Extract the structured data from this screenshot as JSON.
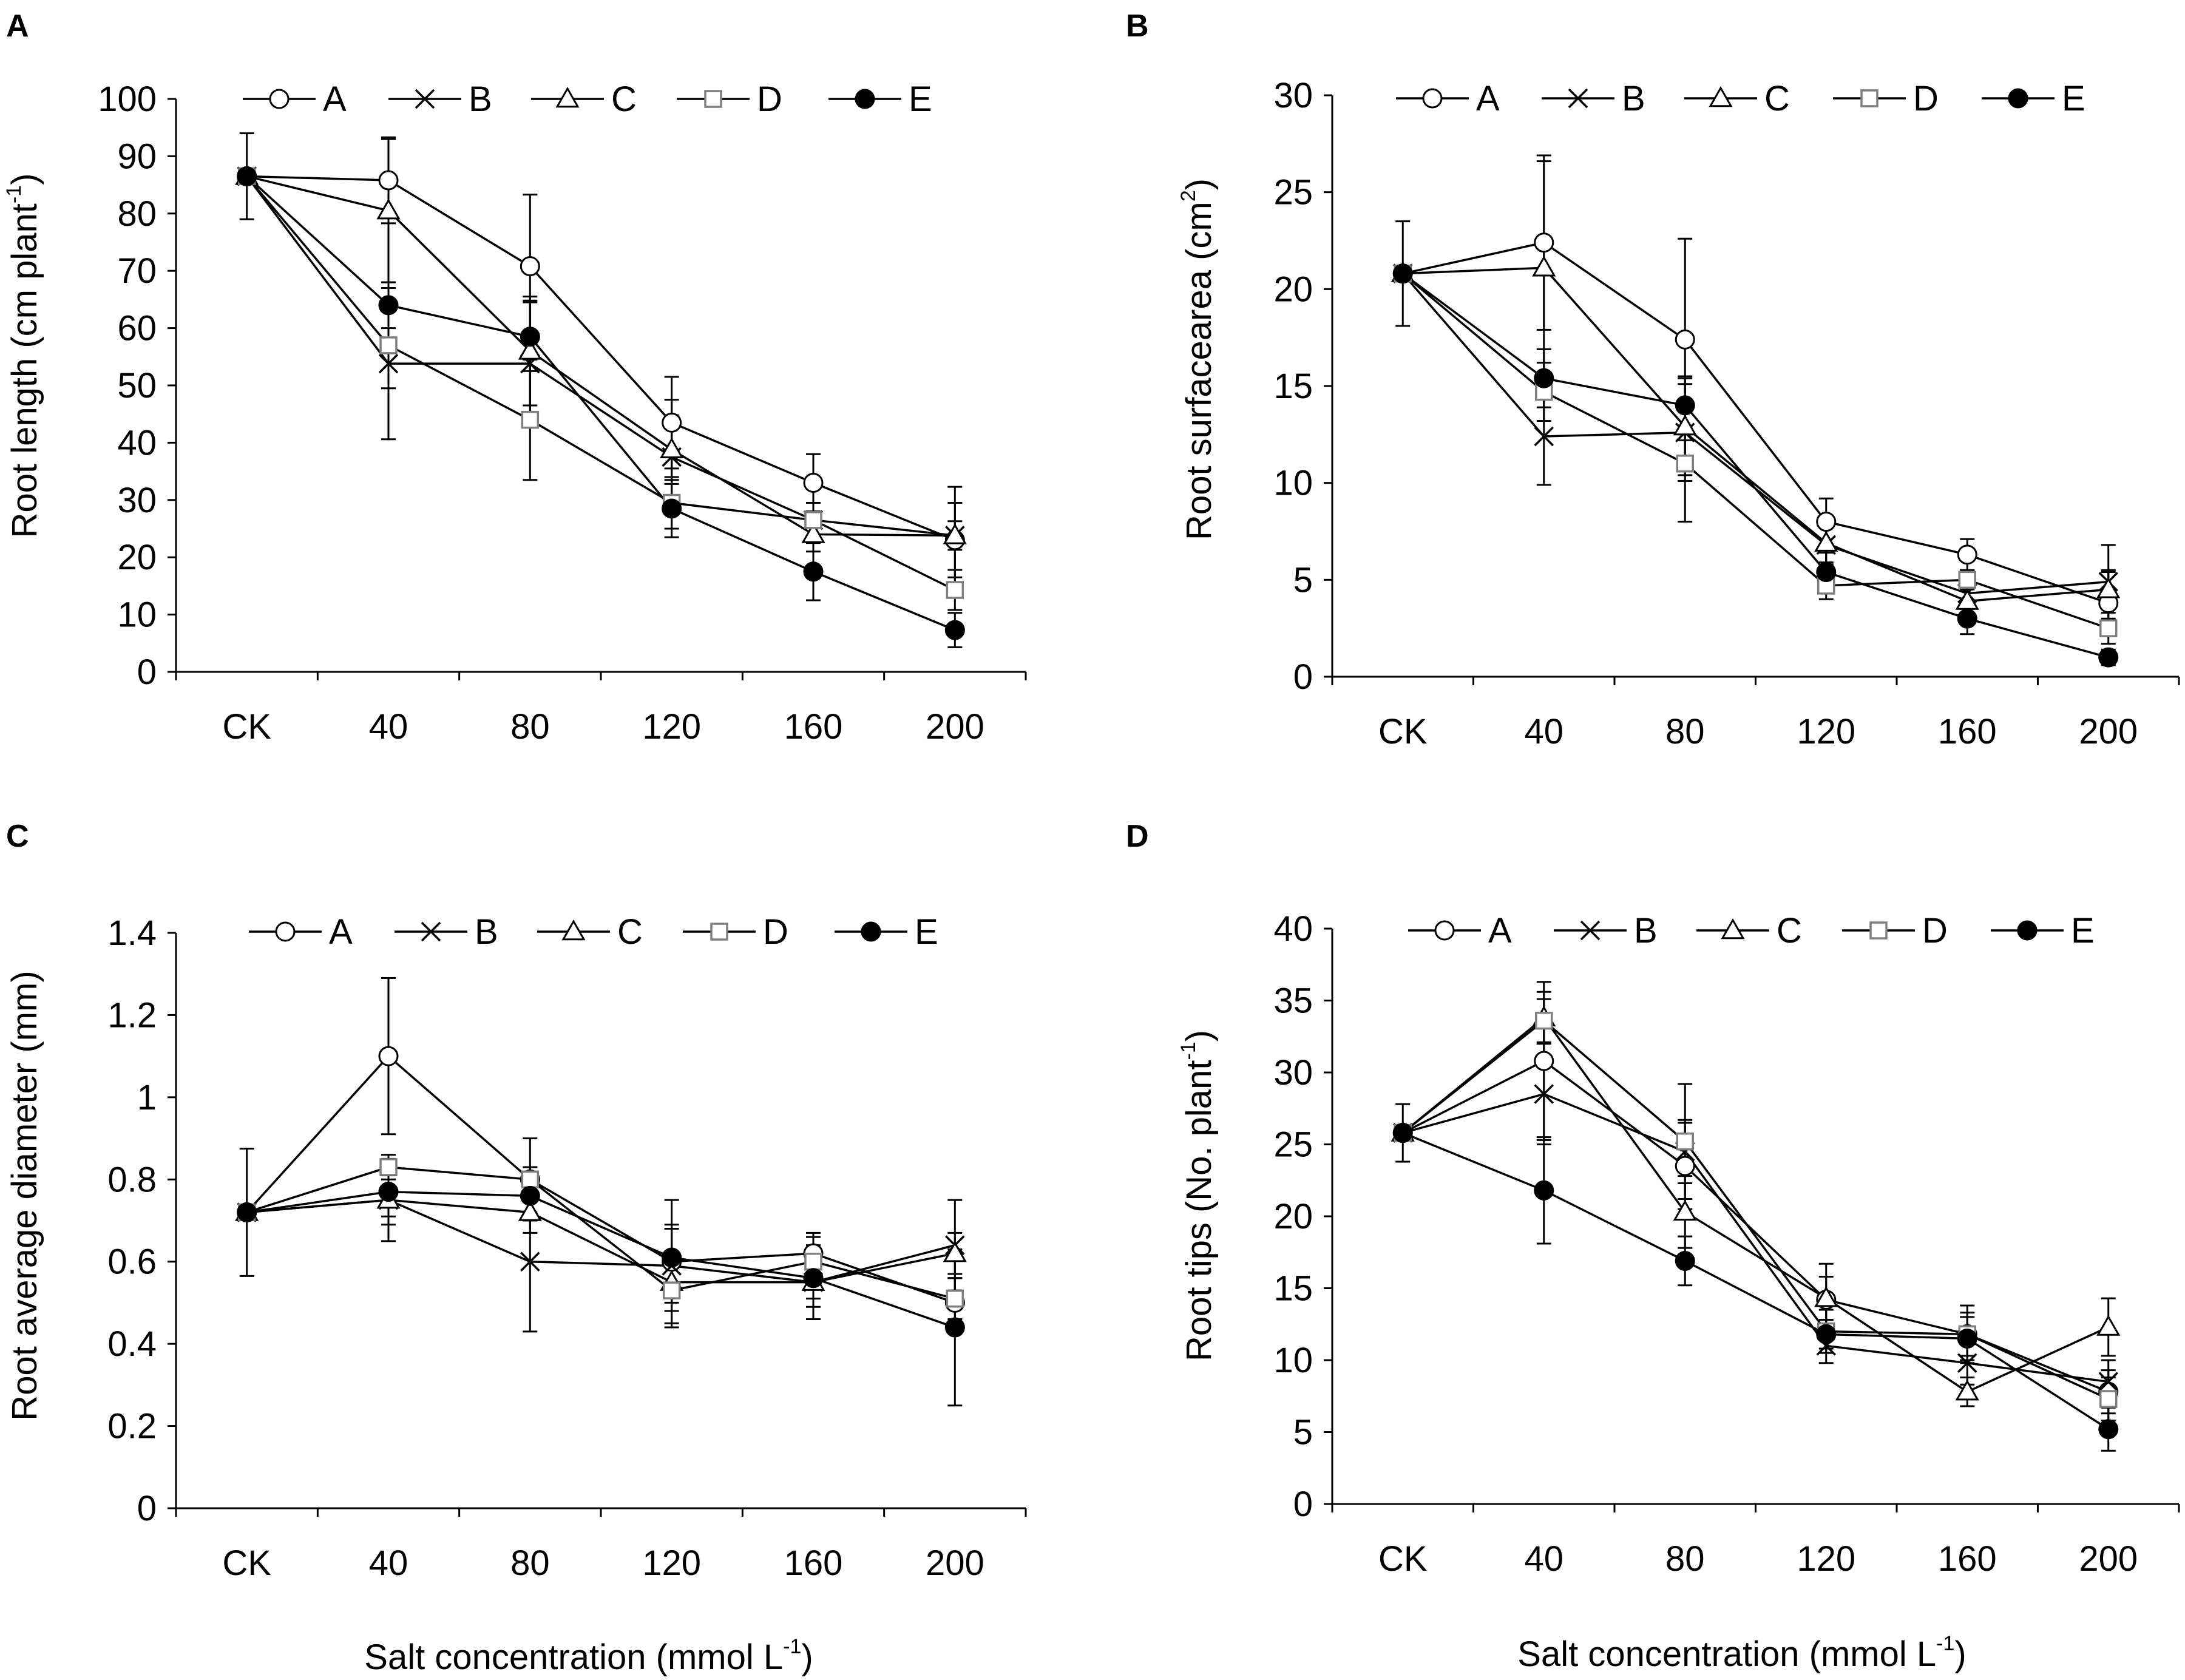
{
  "chart_data": [
    {
      "type": "line",
      "panel": "A",
      "title": "",
      "xlabel": "",
      "ylabel": "Root length (cm plant",
      "ylabel_sup": "-1",
      "ylabel_end": ")",
      "categories": [
        "CK",
        "40",
        "80",
        "120",
        "160",
        "200"
      ],
      "ylim": [
        0,
        100
      ],
      "yticks": [
        0,
        10,
        20,
        30,
        40,
        50,
        60,
        70,
        80,
        90,
        100
      ],
      "legend_position": "top",
      "series": [
        {
          "name": "A",
          "marker": "open-circle",
          "values": [
            86.5,
            85.8,
            70.8,
            43.5,
            33.0,
            23.0
          ],
          "err": [
            7.5,
            7.5,
            12.5,
            8.0,
            5.0,
            6.5
          ]
        },
        {
          "name": "B",
          "marker": "cross",
          "values": [
            86.5,
            53.8,
            53.8,
            37.5,
            26.5,
            23.8
          ],
          "err": [
            0,
            13.2,
            11.0,
            10.0,
            3.0,
            2.5
          ]
        },
        {
          "name": "C",
          "marker": "open-triangle",
          "values": [
            86.5,
            80.5,
            56.0,
            38.8,
            24.0,
            23.8
          ],
          "err": [
            0,
            12.5,
            9.5,
            6.0,
            3.0,
            8.5
          ]
        },
        {
          "name": "D",
          "marker": "open-square-gray",
          "values": [
            86.5,
            57.0,
            44.0,
            29.5,
            26.5,
            14.3
          ],
          "err": [
            0,
            7.5,
            10.5,
            4.5,
            3.0,
            3.5
          ]
        },
        {
          "name": "E",
          "marker": "filled-circle",
          "values": [
            86.5,
            64.0,
            58.5,
            28.5,
            17.5,
            7.3
          ],
          "err": [
            0,
            4.0,
            6.0,
            5.0,
            5.0,
            3.0
          ]
        }
      ]
    },
    {
      "type": "line",
      "panel": "B",
      "title": "",
      "xlabel": "",
      "ylabel": "Root surfacearea (cm",
      "ylabel_sup": "2",
      "ylabel_end": ")",
      "categories": [
        "CK",
        "40",
        "80",
        "120",
        "160",
        "200"
      ],
      "ylim": [
        0,
        30
      ],
      "yticks": [
        0,
        5,
        10,
        15,
        20,
        25,
        30
      ],
      "legend_position": "top",
      "series": [
        {
          "name": "A",
          "marker": "open-circle",
          "values": [
            20.8,
            22.4,
            17.4,
            8.0,
            6.3,
            3.8
          ],
          "err": [
            2.7,
            4.5,
            5.2,
            1.2,
            0.8,
            1.6
          ]
        },
        {
          "name": "B",
          "marker": "cross",
          "values": [
            20.8,
            12.4,
            12.6,
            6.8,
            4.3,
            4.9
          ],
          "err": [
            0,
            2.5,
            2.5,
            1.0,
            0.8,
            1.9
          ]
        },
        {
          "name": "C",
          "marker": "open-triangle",
          "values": [
            20.8,
            21.1,
            12.9,
            6.9,
            3.9,
            4.5
          ],
          "err": [
            0,
            5.5,
            2.5,
            1.0,
            0.8,
            1.0
          ]
        },
        {
          "name": "D",
          "marker": "open-square-gray",
          "values": [
            20.8,
            14.7,
            11.0,
            4.7,
            5.0,
            2.5
          ],
          "err": [
            0,
            1.5,
            3.0,
            0.7,
            0.5,
            0.8
          ]
        },
        {
          "name": "E",
          "marker": "filled-circle",
          "values": [
            20.8,
            15.4,
            14.0,
            5.4,
            3.0,
            1.0
          ],
          "err": [
            0,
            1.5,
            1.5,
            1.0,
            0.8,
            0.4
          ]
        }
      ]
    },
    {
      "type": "line",
      "panel": "C",
      "title": "",
      "xlabel": "Salt concentration (mmol L",
      "xlabel_sup": "-1",
      "xlabel_end": ")",
      "ylabel": "Root average diameter (mm)",
      "categories": [
        "CK",
        "40",
        "80",
        "120",
        "160",
        "200"
      ],
      "ylim": [
        0,
        1.4
      ],
      "yticks": [
        0,
        0.2,
        0.4,
        0.6,
        0.8,
        1,
        1.2,
        1.4
      ],
      "legend_position": "top",
      "series": [
        {
          "name": "A",
          "marker": "open-circle",
          "values": [
            0.72,
            1.1,
            0.8,
            0.6,
            0.62,
            0.5
          ],
          "err": [
            0.155,
            0.19,
            0.1,
            0.15,
            0.05,
            0.06
          ]
        },
        {
          "name": "B",
          "marker": "cross",
          "values": [
            0.72,
            0.75,
            0.6,
            0.59,
            0.55,
            0.64
          ],
          "err": [
            0,
            0.1,
            0.17,
            0.09,
            0.06,
            0.11
          ]
        },
        {
          "name": "C",
          "marker": "open-triangle",
          "values": [
            0.72,
            0.75,
            0.72,
            0.55,
            0.55,
            0.62
          ],
          "err": [
            0,
            0.06,
            0.05,
            0.07,
            0.04,
            0.05
          ]
        },
        {
          "name": "D",
          "marker": "open-square-gray",
          "values": [
            0.72,
            0.83,
            0.8,
            0.53,
            0.6,
            0.51
          ],
          "err": [
            0,
            0.03,
            0.03,
            0.09,
            0.04,
            0.05
          ]
        },
        {
          "name": "E",
          "marker": "filled-circle",
          "values": [
            0.72,
            0.77,
            0.76,
            0.61,
            0.56,
            0.44
          ],
          "err": [
            0,
            0.06,
            0.04,
            0.08,
            0.1,
            0.19
          ]
        }
      ]
    },
    {
      "type": "line",
      "panel": "D",
      "title": "",
      "xlabel": "Salt concentration (mmol L",
      "xlabel_sup": "-1",
      "xlabel_end": ")",
      "ylabel": "Root tips (No. plant",
      "ylabel_sup": "-1",
      "ylabel_end": ")",
      "categories": [
        "CK",
        "40",
        "80",
        "120",
        "160",
        "200"
      ],
      "ylim": [
        0,
        40
      ],
      "yticks": [
        0,
        5,
        10,
        15,
        20,
        25,
        30,
        35,
        40
      ],
      "legend_position": "top",
      "series": [
        {
          "name": "A",
          "marker": "open-circle",
          "values": [
            25.8,
            30.8,
            23.5,
            14.2,
            11.8,
            7.8
          ],
          "err": [
            2.0,
            5.5,
            3.0,
            2.5,
            2.0,
            1.5
          ]
        },
        {
          "name": "B",
          "marker": "cross",
          "values": [
            25.8,
            28.5,
            24.5,
            11.0,
            9.8,
            8.5
          ],
          "err": [
            0,
            3.5,
            2.2,
            1.2,
            1.5,
            1.5
          ]
        },
        {
          "name": "C",
          "marker": "open-triangle",
          "values": [
            25.8,
            33.8,
            20.3,
            14.3,
            7.8,
            12.3
          ],
          "err": [
            0,
            1.8,
            2.5,
            1.5,
            1.0,
            2.0
          ]
        },
        {
          "name": "D",
          "marker": "open-square-gray",
          "values": [
            25.8,
            33.6,
            25.2,
            12.0,
            11.8,
            7.3
          ],
          "err": [
            0,
            1.5,
            4.0,
            1.5,
            1.5,
            1.5
          ]
        },
        {
          "name": "E",
          "marker": "filled-circle",
          "values": [
            25.8,
            21.8,
            16.9,
            11.8,
            11.5,
            5.2
          ],
          "err": [
            0,
            3.7,
            1.7,
            1.0,
            1.5,
            1.5
          ]
        }
      ]
    }
  ]
}
